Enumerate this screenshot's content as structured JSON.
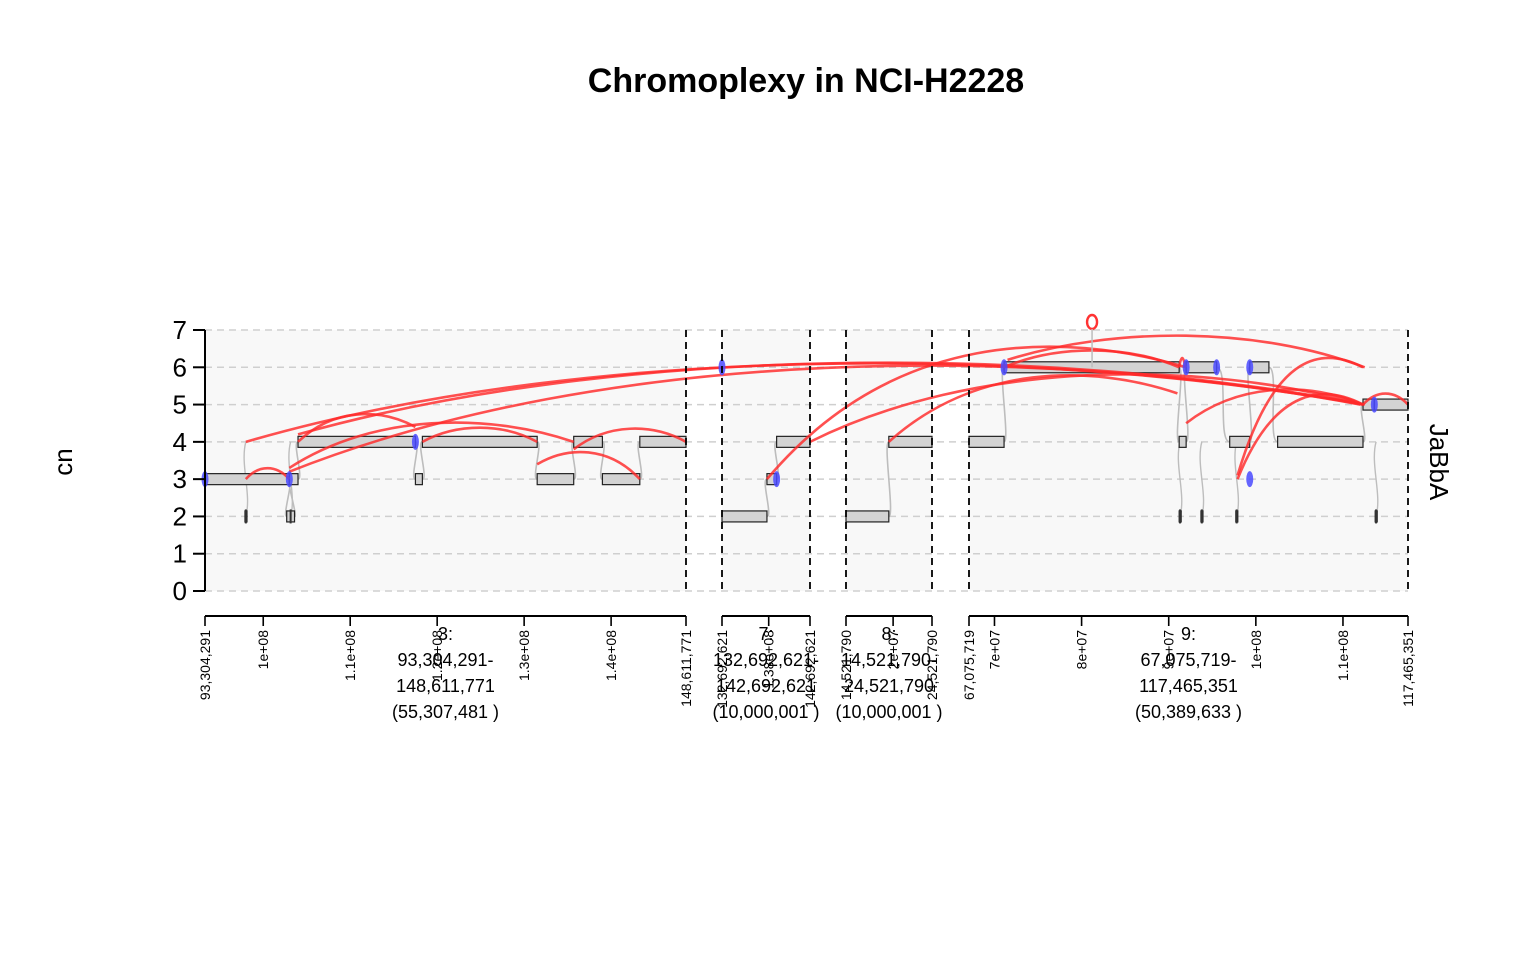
{
  "chart_data": {
    "type": "genome-graph",
    "title": "Chromoplexy in NCI-H2228",
    "ylabel": "cn",
    "track_label": "JaBbA",
    "ylim": [
      0,
      7
    ],
    "y_ticks": [
      "0",
      "1",
      "2",
      "3",
      "4",
      "5",
      "6",
      "7"
    ],
    "grid": true,
    "windows": [
      {
        "chrom": "3",
        "start": 93304291,
        "end": 148611771,
        "label_lines": [
          "3:",
          "93,304,291-",
          "148,611,771",
          "(55,307,481 )"
        ],
        "edge_labels": [
          "93,304,291",
          "148,611,771"
        ],
        "ticks": [
          {
            "pos": 100000000,
            "label": "1e+08"
          },
          {
            "pos": 110000000,
            "label": "1.1e+08"
          },
          {
            "pos": 120000000,
            "label": "1.2e+08"
          },
          {
            "pos": 130000000,
            "label": "1.3e+08"
          },
          {
            "pos": 140000000,
            "label": "1.4e+08"
          }
        ],
        "segments": [
          {
            "start": 93304291,
            "end": 103000000,
            "cn": 3
          },
          {
            "start": 103000000,
            "end": 104000000,
            "cn": 3
          },
          {
            "start": 104000000,
            "end": 117500000,
            "cn": 4
          },
          {
            "start": 117500000,
            "end": 118300000,
            "cn": 3
          },
          {
            "start": 118300000,
            "end": 131500000,
            "cn": 4
          },
          {
            "start": 131500000,
            "end": 135700000,
            "cn": 3
          },
          {
            "start": 135700000,
            "end": 139000000,
            "cn": 4
          },
          {
            "start": 139000000,
            "end": 143300000,
            "cn": 3
          },
          {
            "start": 143300000,
            "end": 148611771,
            "cn": 4
          },
          {
            "start": 97900000,
            "end": 98100000,
            "cn": 2
          },
          {
            "start": 102700000,
            "end": 103600000,
            "cn": 2
          }
        ]
      },
      {
        "chrom": "7",
        "start": 132692621,
        "end": 142692621,
        "label_lines": [
          "7:",
          "132,692,621-",
          "142,692,621",
          "(10,000,001 )"
        ],
        "edge_labels": [
          "132,692,621",
          "142,692,621"
        ],
        "ticks": [
          {
            "pos": 138000000,
            "label": "1.38e+08"
          }
        ],
        "segments": [
          {
            "start": 132692621,
            "end": 137800000,
            "cn": 2
          },
          {
            "start": 137800000,
            "end": 138900000,
            "cn": 3
          },
          {
            "start": 138900000,
            "end": 142692621,
            "cn": 4
          }
        ]
      },
      {
        "chrom": "8",
        "start": 14521790,
        "end": 24521790,
        "label_lines": [
          "8:",
          "14,521,790-",
          "24,521,790",
          "(10,000,001 )"
        ],
        "edge_labels": [
          "14,521,790",
          "24,521,790"
        ],
        "ticks": [
          {
            "pos": 20000000,
            "label": "2e+07"
          }
        ],
        "segments": [
          {
            "start": 14521790,
            "end": 19500000,
            "cn": 2
          },
          {
            "start": 19500000,
            "end": 24521790,
            "cn": 4
          }
        ]
      },
      {
        "chrom": "9",
        "start": 67075719,
        "end": 117465351,
        "label_lines": [
          "9:",
          "67,075,719-",
          "117,465,351",
          "(50,389,633 )"
        ],
        "edge_labels": [
          "67,075,719",
          "117,465,351"
        ],
        "ticks": [
          {
            "pos": 70000000,
            "label": "7e+07"
          },
          {
            "pos": 80000000,
            "label": "8e+07"
          },
          {
            "pos": 90000000,
            "label": "9e+07"
          },
          {
            "pos": 100000000,
            "label": "1e+08"
          },
          {
            "pos": 110000000,
            "label": "1.1e+08"
          }
        ],
        "segments": [
          {
            "start": 67075719,
            "end": 71100000,
            "cn": 4
          },
          {
            "start": 71100000,
            "end": 91200000,
            "cn": 6
          },
          {
            "start": 91200000,
            "end": 92000000,
            "cn": 4
          },
          {
            "start": 92000000,
            "end": 95500000,
            "cn": 6
          },
          {
            "start": 97000000,
            "end": 99300000,
            "cn": 4
          },
          {
            "start": 99300000,
            "end": 101500000,
            "cn": 6
          },
          {
            "start": 102500000,
            "end": 112300000,
            "cn": 4
          },
          {
            "start": 112300000,
            "end": 113600000,
            "cn": 5
          },
          {
            "start": 113600000,
            "end": 117465351,
            "cn": 5
          },
          {
            "start": 91200000,
            "end": 91400000,
            "cn": 2
          },
          {
            "start": 93700000,
            "end": 93900000,
            "cn": 2
          },
          {
            "start": 97700000,
            "end": 97900000,
            "cn": 2
          },
          {
            "start": 113700000,
            "end": 113900000,
            "cn": 2
          }
        ]
      }
    ],
    "junctions": [
      {
        "from": [
          0,
          98000000,
          4
        ],
        "to": [
          3,
          112300000,
          5
        ]
      },
      {
        "from": [
          0,
          98000000,
          3
        ],
        "to": [
          0,
          103000000,
          3
        ]
      },
      {
        "from": [
          0,
          104000000,
          4
        ],
        "to": [
          0,
          117500000,
          4.4
        ]
      },
      {
        "from": [
          0,
          104000000,
          4.2
        ],
        "to": [
          3,
          112500000,
          5
        ]
      },
      {
        "from": [
          0,
          103000000,
          3.2
        ],
        "to": [
          3,
          112000000,
          5
        ]
      },
      {
        "from": [
          0,
          103000000,
          3.3
        ],
        "to": [
          0,
          135700000,
          4
        ]
      },
      {
        "from": [
          0,
          118300000,
          4
        ],
        "to": [
          0,
          131500000,
          4
        ]
      },
      {
        "from": [
          0,
          131500000,
          3.4
        ],
        "to": [
          0,
          143300000,
          3
        ]
      },
      {
        "from": [
          0,
          135700000,
          3.8
        ],
        "to": [
          0,
          148611771,
          4
        ]
      },
      {
        "from": [
          1,
          137800000,
          3
        ],
        "to": [
          3,
          92000000,
          6
        ]
      },
      {
        "from": [
          1,
          142692621,
          4
        ],
        "to": [
          3,
          112300000,
          5
        ]
      },
      {
        "from": [
          2,
          19500000,
          4
        ],
        "to": [
          3,
          91000000,
          5.3
        ]
      },
      {
        "from": [
          3,
          71100000,
          6
        ],
        "to": [
          3,
          91200000,
          6
        ]
      },
      {
        "from": [
          3,
          71500000,
          6.2
        ],
        "to": [
          3,
          112500000,
          6
        ]
      },
      {
        "from": [
          3,
          91200000,
          6
        ],
        "to": [
          3,
          91900000,
          6
        ]
      },
      {
        "from": [
          3,
          92000000,
          4.5
        ],
        "to": [
          3,
          112300000,
          5
        ]
      },
      {
        "from": [
          3,
          97900000,
          3
        ],
        "to": [
          3,
          112300000,
          5
        ]
      },
      {
        "from": [
          3,
          97900000,
          3.1
        ],
        "to": [
          3,
          112300000,
          6
        ]
      },
      {
        "from": [
          3,
          112300000,
          5
        ],
        "to": [
          3,
          117465351,
          5
        ]
      }
    ],
    "loose_ends": [
      {
        "w": 0,
        "pos": 93304291,
        "cn": 3
      },
      {
        "w": 0,
        "pos": 103000000,
        "cn": 3
      },
      {
        "w": 0,
        "pos": 117500000,
        "cn": 4
      },
      {
        "w": 1,
        "pos": 132692621,
        "cn": 6
      },
      {
        "w": 1,
        "pos": 138900000,
        "cn": 3
      },
      {
        "w": 3,
        "pos": 71100000,
        "cn": 6
      },
      {
        "w": 3,
        "pos": 92000000,
        "cn": 6
      },
      {
        "w": 3,
        "pos": 95500000,
        "cn": 6
      },
      {
        "w": 3,
        "pos": 99300000,
        "cn": 6
      },
      {
        "w": 3,
        "pos": 99300000,
        "cn": 3
      },
      {
        "w": 3,
        "pos": 113600000,
        "cn": 5
      }
    ],
    "loop": {
      "w": 3,
      "pos": 81200000,
      "cn": 7
    }
  }
}
